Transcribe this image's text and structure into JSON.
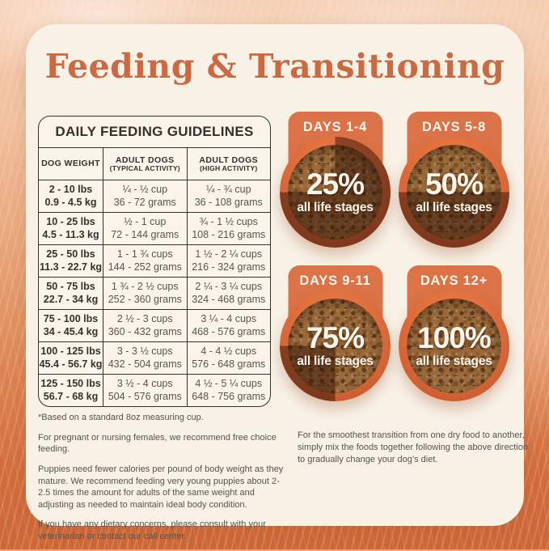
{
  "title": "Feeding & Transitioning",
  "table": {
    "title": "DAILY FEEDING GUIDELINES",
    "columns": [
      {
        "label": "DOG WEIGHT",
        "sub": ""
      },
      {
        "label": "ADULT DOGS",
        "sub": "(TYPICAL ACTIVITY)"
      },
      {
        "label": "ADULT DOGS",
        "sub": "(HIGH ACTIVITY)"
      }
    ],
    "rows": [
      {
        "weight_lbs": "2 - 10 lbs",
        "weight_kg": "0.9 - 4.5 kg",
        "typical_cups": "¼ - ½ cup",
        "typical_grams": "36 - 72 grams",
        "high_cups": "¼ - ¾ cup",
        "high_grams": "36 - 108 grams"
      },
      {
        "weight_lbs": "10 - 25 lbs",
        "weight_kg": "4.5 - 11.3 kg",
        "typical_cups": "½ - 1 cup",
        "typical_grams": "72 - 144 grams",
        "high_cups": "¾ - 1 ½ cups",
        "high_grams": "108 - 216 grams"
      },
      {
        "weight_lbs": "25 - 50 lbs",
        "weight_kg": "11.3 - 22.7 kg",
        "typical_cups": "1 - 1 ¾ cups",
        "typical_grams": "144 - 252 grams",
        "high_cups": "1 ½ - 2 ¼ cups",
        "high_grams": "216 - 324 grams"
      },
      {
        "weight_lbs": "50 - 75 lbs",
        "weight_kg": "22.7 - 34 kg",
        "typical_cups": "1 ¾ - 2 ½ cups",
        "typical_grams": "252 - 360 grams",
        "high_cups": "2 ¼ - 3 ¼ cups",
        "high_grams": "324 - 468 grams"
      },
      {
        "weight_lbs": "75 - 100 lbs",
        "weight_kg": "34 - 45.4 kg",
        "typical_cups": "2 ½ - 3 cups",
        "typical_grams": "360 - 432 grams",
        "high_cups": "3 ¼ - 4 cups",
        "high_grams": "468 - 576 grams"
      },
      {
        "weight_lbs": "100 - 125 lbs",
        "weight_kg": "45.4 - 56.7 kg",
        "typical_cups": "3 - 3 ½ cups",
        "typical_grams": "432 - 504 grams",
        "high_cups": "4 - 4 ½ cups",
        "high_grams": "576 - 648 grams"
      },
      {
        "weight_lbs": "125 - 150 lbs",
        "weight_kg": "56.7 - 68 kg",
        "typical_cups": "3 ½ - 4 cups",
        "typical_grams": "504 - 576 grams",
        "high_cups": "4 ½ - 5 ¼ cups",
        "high_grams": "648 - 756 grams"
      }
    ]
  },
  "footnotes": [
    "*Based on a standard 8oz measuring cup.",
    "For pregnant or nursing females, we recommend free choice feeding.",
    "Puppies need fewer calories per pound of body weight as they mature. We recommend feeding very young puppies about 2-2.5 times the amount for adults of the same weight and adjusting as needed to maintain ideal body condition.",
    "If you have any dietary concerns, please consult with your veterinarian or contact our call center."
  ],
  "transition": {
    "bowls": [
      {
        "days": "DAYS 1-4",
        "percent": "25%",
        "label": "all life stages"
      },
      {
        "days": "DAYS 5-8",
        "percent": "50%",
        "label": "all life stages"
      },
      {
        "days": "DAYS 9-11",
        "percent": "75%",
        "label": "all life stages"
      },
      {
        "days": "DAYS 12+",
        "percent": "100%",
        "label": "all life stages"
      }
    ],
    "note": "For the smoothest transition from one dry food to another, simply mix the foods together following the above direction to gradually change your dog’s diet."
  },
  "colors": {
    "accent_orange": "#dc7348",
    "title_orange": "#cc6941",
    "bowl_rim": "#de6c3a",
    "card_cream": "#f8f1e6",
    "table_ink": "#33312c",
    "body_text": "#56544c",
    "shade_overlay": "rgba(55,22,8,0.52)"
  }
}
